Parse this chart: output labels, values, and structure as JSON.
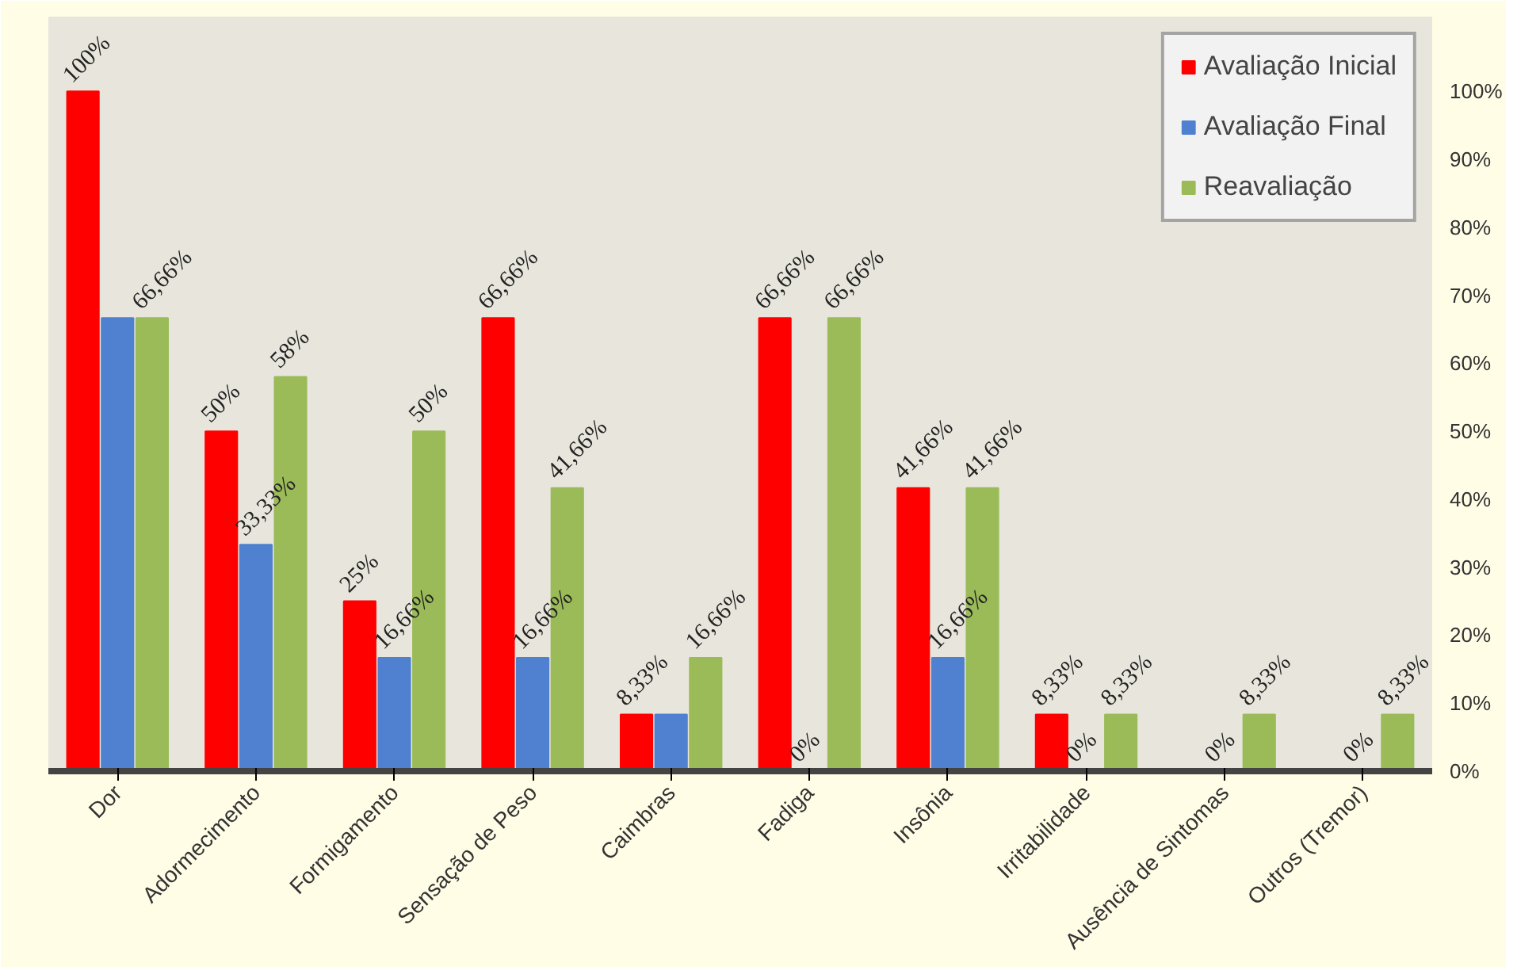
{
  "chart_data": {
    "type": "bar",
    "categories": [
      "Dor",
      "Adormecimento",
      "Formigamento",
      "Sensação de Peso",
      "Caimbras",
      "Fadiga",
      "Insônia",
      "Irritabilidade",
      "Ausência de Sintomas",
      "Outros (Tremor)"
    ],
    "series": [
      {
        "name": "Avaliação Inicial",
        "color": "#ff0000",
        "values": [
          100,
          50,
          25,
          66.66,
          8.33,
          66.66,
          41.66,
          8.33,
          0,
          0
        ],
        "value_labels": [
          "100%",
          "50%",
          "25%",
          "66,66%",
          "8,33%",
          "66,66%",
          "41,66%",
          "8,33%",
          null,
          null
        ]
      },
      {
        "name": "Avaliação Final",
        "color": "#4f81d0",
        "values": [
          66.66,
          33.33,
          16.66,
          16.66,
          8.33,
          0,
          16.66,
          0,
          0,
          0
        ],
        "value_labels": [
          null,
          "33,33%",
          "16,66%",
          "16,66%",
          null,
          "0%",
          "16,66%",
          "0%",
          "0%",
          "0%"
        ]
      },
      {
        "name": "Reavaliação",
        "color": "#9bbb59",
        "values": [
          66.66,
          58,
          50,
          41.66,
          16.66,
          66.66,
          41.66,
          8.33,
          8.33,
          8.33
        ],
        "value_labels": [
          "66,66%",
          "58%",
          "50%",
          "41,66%",
          "16,66%",
          "66,66%",
          "41,66%",
          "8,33%",
          "8,33%",
          "8,33%"
        ]
      }
    ],
    "ylim": [
      0,
      111
    ],
    "yticks": [
      {
        "value": 0,
        "label": "0%"
      },
      {
        "value": 10,
        "label": "10%"
      },
      {
        "value": 20,
        "label": "20%"
      },
      {
        "value": 30,
        "label": "30%"
      },
      {
        "value": 40,
        "label": "40%"
      },
      {
        "value": 50,
        "label": "50%"
      },
      {
        "value": 60,
        "label": "60%"
      },
      {
        "value": 70,
        "label": "70%"
      },
      {
        "value": 80,
        "label": "80%"
      },
      {
        "value": 90,
        "label": "90%"
      },
      {
        "value": 100,
        "label": "100%"
      }
    ],
    "grid": false,
    "legend": "top right"
  }
}
